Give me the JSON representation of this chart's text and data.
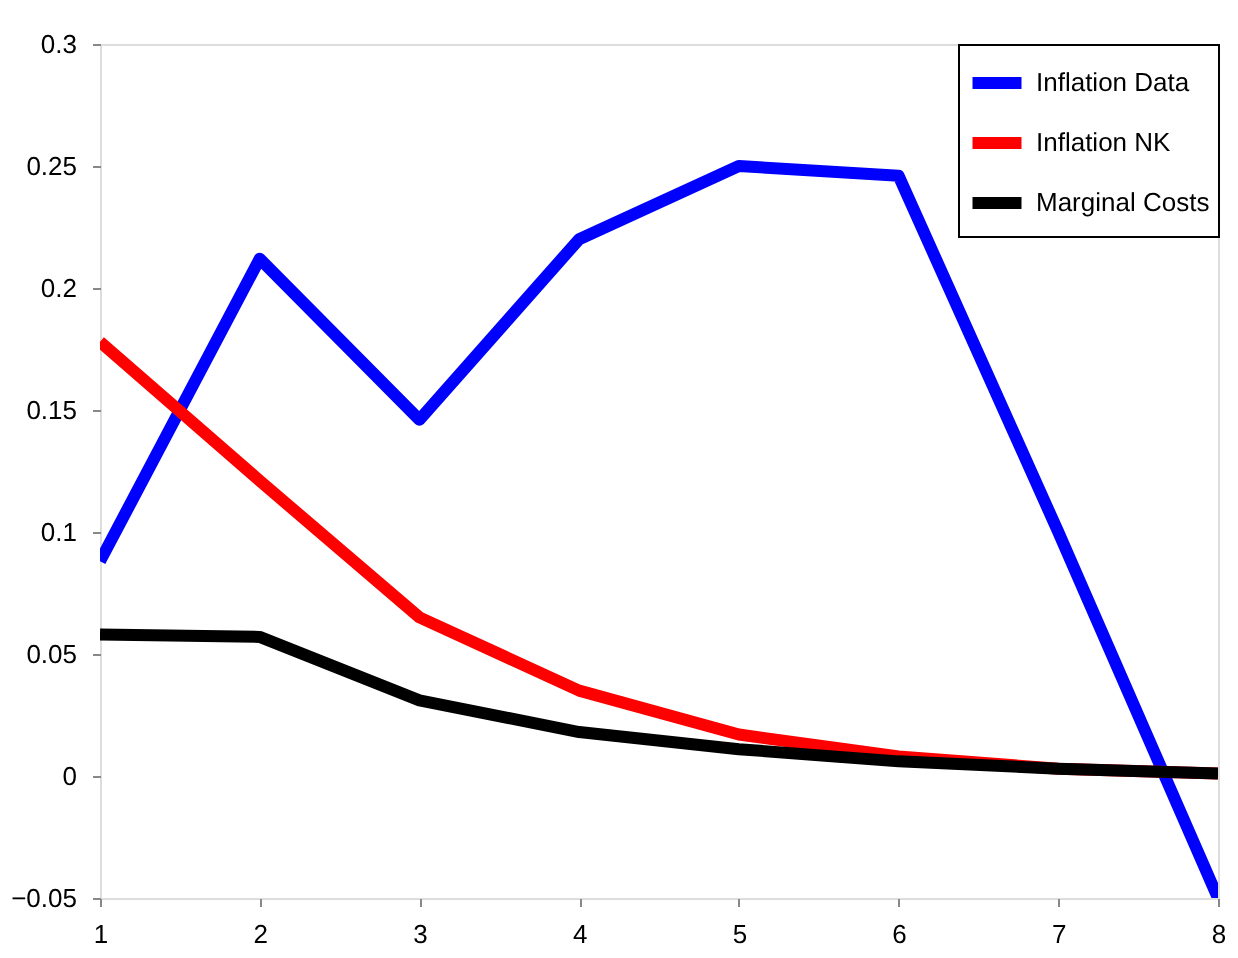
{
  "chart_data": {
    "type": "line",
    "x": [
      1,
      2,
      3,
      4,
      5,
      6,
      7,
      8
    ],
    "series": [
      {
        "name": "Inflation Data",
        "color": "#0000ff",
        "values": [
          0.088,
          0.212,
          0.146,
          0.22,
          0.25,
          0.246,
          0.1,
          -0.05
        ]
      },
      {
        "name": "Inflation NK",
        "color": "#ff0000",
        "values": [
          0.178,
          0.121,
          0.065,
          0.035,
          0.017,
          0.008,
          0.003,
          0.001
        ]
      },
      {
        "name": "Marginal Costs",
        "color": "#000000",
        "values": [
          0.058,
          0.057,
          0.031,
          0.018,
          0.011,
          0.006,
          0.003,
          0.001
        ]
      }
    ],
    "xlim": [
      1,
      8
    ],
    "xticks": [
      1,
      2,
      3,
      4,
      5,
      6,
      7,
      8
    ],
    "ylim": [
      -0.05,
      0.3
    ],
    "yticks": [
      -0.05,
      0,
      0.05,
      0.1,
      0.15,
      0.2,
      0.25,
      0.3
    ],
    "grid": false,
    "legend": "top right",
    "line_style": "solid",
    "marker": "none"
  }
}
